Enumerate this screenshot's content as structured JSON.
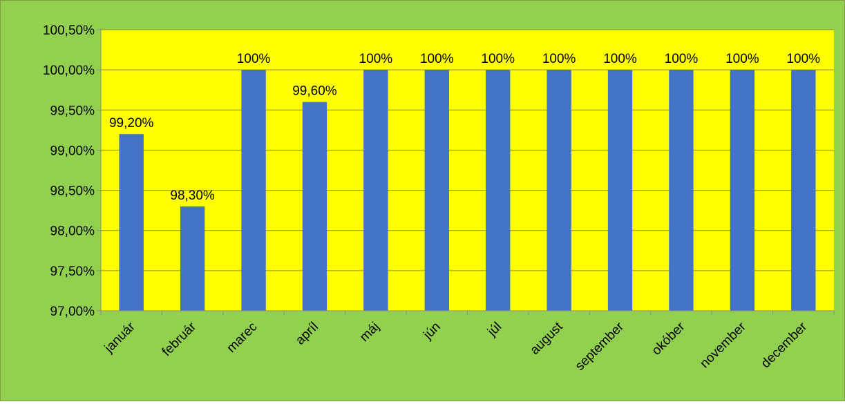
{
  "colors": {
    "chart_background": "#92d050",
    "plot_background": "#ffff00",
    "bar": "#4472c4",
    "gridline": "#8c8c3a",
    "axis": "#8c8c8c"
  },
  "chart_data": {
    "type": "bar",
    "categories": [
      "január",
      "február",
      "marec",
      "apríl",
      "máj",
      "jún",
      "júl",
      "august",
      "september",
      "okóber",
      "november",
      "december"
    ],
    "values": [
      0.992,
      0.983,
      1.0,
      0.996,
      1.0,
      1.0,
      1.0,
      1.0,
      1.0,
      1.0,
      1.0,
      1.0
    ],
    "data_labels": [
      "99,20%",
      "98,30%",
      "100%",
      "99,60%",
      "100%",
      "100%",
      "100%",
      "100%",
      "100%",
      "100%",
      "100%",
      "100%"
    ],
    "y_ticks": [
      0.97,
      0.975,
      0.98,
      0.985,
      0.99,
      0.995,
      1.0,
      1.005
    ],
    "y_tick_labels": [
      "97,00%",
      "97,50%",
      "98,00%",
      "98,50%",
      "99,00%",
      "99,50%",
      "100,00%",
      "100,50%"
    ],
    "ylim": [
      0.97,
      1.005
    ],
    "grid": true,
    "legend": "none",
    "title": "",
    "xlabel": "",
    "ylabel": ""
  }
}
